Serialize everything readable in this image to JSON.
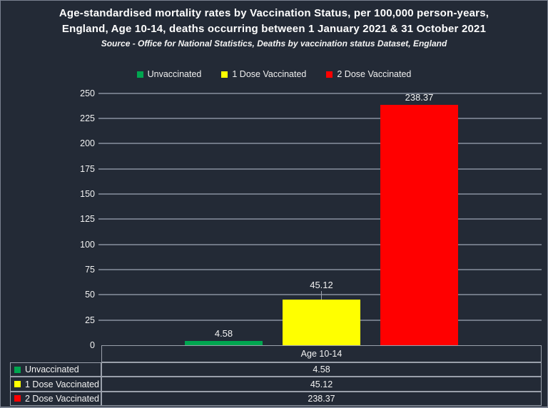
{
  "title": {
    "line1": "Age-standardised mortality rates by Vaccination Status, per 100,000 person-years,",
    "line2": "England, Age 10-14, deaths occurring between 1 January 2021 & 31 October 2021",
    "source": "Source - Office for National Statistics, Deaths by vaccination status Dataset, England"
  },
  "colors": {
    "background": "#232a36",
    "gridline": "#6f7785",
    "table_border": "#9aa0ab",
    "text": "#f2f2f2",
    "unvaccinated": "#00a650",
    "one_dose": "#ffff00",
    "two_dose": "#ff0000"
  },
  "legend": {
    "items": [
      {
        "label": "Unvaccinated",
        "color": "#00a650"
      },
      {
        "label": "1 Dose Vaccinated",
        "color": "#ffff00"
      },
      {
        "label": "2 Dose Vaccinated",
        "color": "#ff0000"
      }
    ]
  },
  "chart_data": {
    "type": "bar",
    "categories": [
      "Age 10-14"
    ],
    "series": [
      {
        "name": "Unvaccinated",
        "values": [
          4.58
        ],
        "color": "#00a650"
      },
      {
        "name": "1 Dose Vaccinated",
        "values": [
          45.12
        ],
        "color": "#ffff00"
      },
      {
        "name": "2 Dose Vaccinated",
        "values": [
          238.37
        ],
        "color": "#ff0000"
      }
    ],
    "data_labels": [
      {
        "text": "4.58",
        "leader": false
      },
      {
        "text": "45.12",
        "leader": true
      },
      {
        "text": "238.37",
        "leader": false
      }
    ],
    "ylim": [
      0,
      250
    ],
    "ytick_step": 25,
    "grid": true,
    "legend_position": "top",
    "xlabel": "",
    "ylabel": "",
    "table": {
      "header": "Age 10-14",
      "rows": [
        {
          "label": "Unvaccinated",
          "value": "4.58",
          "color": "#00a650"
        },
        {
          "label": "1 Dose Vaccinated",
          "value": "45.12",
          "color": "#ffff00"
        },
        {
          "label": "2 Dose Vaccinated",
          "value": "238.37",
          "color": "#ff0000"
        }
      ]
    }
  }
}
